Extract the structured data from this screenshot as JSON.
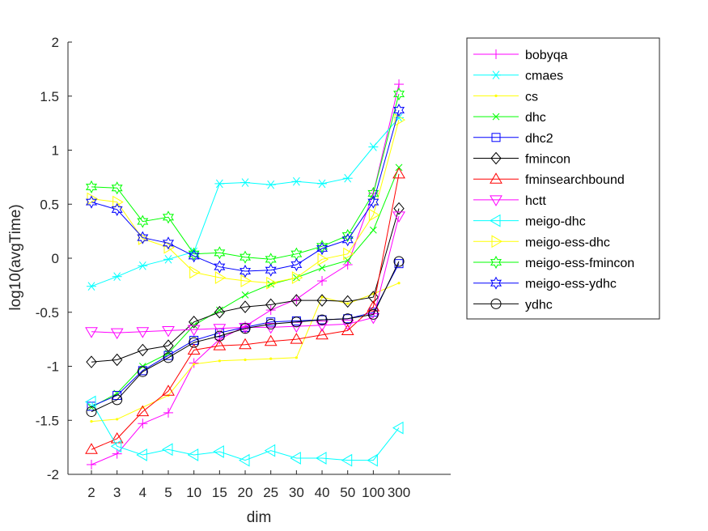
{
  "chart_data": {
    "type": "line",
    "title": "",
    "xlabel": "dim",
    "ylabel": "log10(avgTime)",
    "categories": [
      "2",
      "3",
      "4",
      "5",
      "10",
      "15",
      "20",
      "25",
      "30",
      "40",
      "50",
      "100",
      "300"
    ],
    "ylim": [
      -2,
      2
    ],
    "yticks": [
      "-2",
      "-1.5",
      "-1",
      "-0.5",
      "0",
      "0.5",
      "1",
      "1.5",
      "2"
    ],
    "grid": false,
    "legend_position": "outside-right",
    "series": [
      {
        "name": "bobyqa",
        "color": "#ff00ff",
        "marker": "plus",
        "values": [
          -1.91,
          -1.81,
          -1.53,
          -1.43,
          -0.97,
          -0.75,
          -0.63,
          -0.48,
          -0.38,
          -0.21,
          -0.06,
          0.6,
          1.61
        ]
      },
      {
        "name": "cmaes",
        "color": "#00ffff",
        "marker": "asterisk",
        "values": [
          -0.26,
          -0.17,
          -0.07,
          -0.01,
          0.06,
          0.69,
          0.7,
          0.68,
          0.71,
          0.69,
          0.74,
          1.03,
          1.3
        ]
      },
      {
        "name": "cs",
        "color": "#ffff00",
        "marker": "dot",
        "values": [
          -1.51,
          -1.49,
          -1.38,
          -1.27,
          -0.98,
          -0.95,
          -0.94,
          -0.93,
          -0.92,
          -0.36,
          -0.42,
          -0.33,
          -0.23
        ]
      },
      {
        "name": "dhc",
        "color": "#00ff00",
        "marker": "x",
        "values": [
          -1.38,
          -1.25,
          -1.0,
          -0.88,
          -0.62,
          -0.48,
          -0.34,
          -0.24,
          -0.18,
          -0.09,
          -0.02,
          0.26,
          0.84
        ]
      },
      {
        "name": "dhc2",
        "color": "#0000ff",
        "marker": "square",
        "values": [
          -1.37,
          -1.27,
          -1.04,
          -0.9,
          -0.76,
          -0.69,
          -0.64,
          -0.59,
          -0.58,
          -0.57,
          -0.56,
          -0.5,
          -0.05
        ]
      },
      {
        "name": "fmincon",
        "color": "#000000",
        "marker": "diamond",
        "values": [
          -0.96,
          -0.94,
          -0.85,
          -0.81,
          -0.59,
          -0.5,
          -0.45,
          -0.43,
          -0.39,
          -0.39,
          -0.4,
          -0.36,
          0.46
        ]
      },
      {
        "name": "fminsearchbound",
        "color": "#ff0000",
        "marker": "triangle-up",
        "values": [
          -1.77,
          -1.67,
          -1.42,
          -1.23,
          -0.85,
          -0.81,
          -0.8,
          -0.77,
          -0.75,
          -0.71,
          -0.67,
          -0.45,
          0.78
        ]
      },
      {
        "name": "hctt",
        "color": "#ff00ff",
        "marker": "triangle-down",
        "values": [
          -0.68,
          -0.69,
          -0.68,
          -0.67,
          -0.66,
          -0.65,
          -0.64,
          -0.64,
          -0.63,
          -0.62,
          -0.61,
          -0.55,
          0.39
        ]
      },
      {
        "name": "meigo-dhc",
        "color": "#00ffff",
        "marker": "triangle-left",
        "values": [
          -1.33,
          -1.74,
          -1.82,
          -1.77,
          -1.82,
          -1.79,
          -1.87,
          -1.78,
          -1.85,
          -1.85,
          -1.87,
          -1.87,
          -1.57
        ]
      },
      {
        "name": "meigo-ess-dhc",
        "color": "#ffff00",
        "marker": "triangle-right",
        "values": [
          0.55,
          0.52,
          0.18,
          0.1,
          -0.13,
          -0.18,
          -0.21,
          -0.23,
          -0.18,
          -0.01,
          0.04,
          0.4,
          1.28
        ]
      },
      {
        "name": "meigo-ess-fmincon",
        "color": "#00ff00",
        "marker": "hexagram",
        "values": [
          0.66,
          0.65,
          0.34,
          0.38,
          0.04,
          0.05,
          0.01,
          -0.01,
          0.04,
          0.11,
          0.21,
          0.6,
          1.52
        ]
      },
      {
        "name": "meigo-ess-ydhc",
        "color": "#0000ff",
        "marker": "hexagram",
        "values": [
          0.52,
          0.45,
          0.19,
          0.14,
          0.02,
          -0.08,
          -0.12,
          -0.11,
          -0.06,
          0.09,
          0.17,
          0.52,
          1.37
        ]
      },
      {
        "name": "ydhc",
        "color": "#000000",
        "marker": "circle",
        "values": [
          -1.42,
          -1.31,
          -1.05,
          -0.92,
          -0.78,
          -0.72,
          -0.65,
          -0.61,
          -0.59,
          -0.57,
          -0.56,
          -0.52,
          -0.03
        ]
      }
    ]
  }
}
